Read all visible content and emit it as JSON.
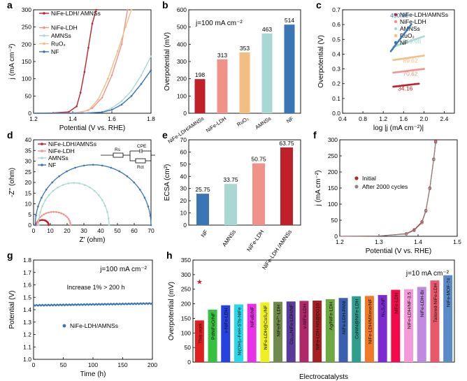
{
  "figure": {
    "panels": [
      "a",
      "b",
      "c",
      "d",
      "e",
      "f",
      "g",
      "h"
    ]
  },
  "chart_data": [
    {
      "panel": "a",
      "type": "line",
      "title": "",
      "xlabel": "Potential (V vs. RHE)",
      "ylabel": "j (mA cm⁻²)",
      "xlim": [
        1.2,
        1.8
      ],
      "ylim": [
        0,
        300
      ],
      "xticks": [
        "1.2",
        "1.4",
        "1.6",
        "1.8"
      ],
      "yticks": [
        "0",
        "50",
        "100",
        "150",
        "200",
        "250",
        "300"
      ],
      "legend_position": "top-left",
      "series": [
        {
          "name": "NiFe-LDH/ AMNSs",
          "color": "#c0202a",
          "x": [
            1.2,
            1.3,
            1.38,
            1.42,
            1.44,
            1.46,
            1.48,
            1.5,
            1.52
          ],
          "y": [
            0,
            1,
            4,
            20,
            60,
            120,
            190,
            260,
            300
          ]
        },
        {
          "name": "NiFe-LDH",
          "color": "#f0928a",
          "x": [
            1.2,
            1.35,
            1.45,
            1.5,
            1.55,
            1.6,
            1.65,
            1.68
          ],
          "y": [
            0,
            0,
            3,
            15,
            45,
            110,
            200,
            300
          ]
        },
        {
          "name": "AMNSs",
          "color": "#a9d8d4",
          "x": [
            1.2,
            1.45,
            1.55,
            1.6,
            1.65,
            1.7,
            1.75,
            1.8
          ],
          "y": [
            0,
            0,
            4,
            15,
            35,
            65,
            110,
            165
          ]
        },
        {
          "name": "RuO₂",
          "color": "#f2be82",
          "x": [
            1.2,
            1.4,
            1.48,
            1.53,
            1.58,
            1.63,
            1.67,
            1.7
          ],
          "y": [
            0,
            0,
            8,
            40,
            100,
            180,
            250,
            300
          ]
        },
        {
          "name": "NF",
          "color": "#3a75b5",
          "x": [
            1.2,
            1.45,
            1.55,
            1.6,
            1.65,
            1.7,
            1.75,
            1.8
          ],
          "y": [
            0,
            0,
            3,
            10,
            25,
            50,
            85,
            125
          ]
        }
      ]
    },
    {
      "panel": "b",
      "type": "bar",
      "title": "j=100 mA cm⁻²",
      "xlabel": "",
      "ylabel": "Overpotential (mV)",
      "ylim": [
        0,
        600
      ],
      "yticks": [
        "0",
        "100",
        "200",
        "300",
        "400",
        "500",
        "600"
      ],
      "categories": [
        "NiFe-LDH/AMNSs",
        "NiFe-LDH",
        "RuO₂",
        "AMNSs",
        "NF"
      ],
      "values": [
        198,
        313,
        353,
        463,
        514
      ],
      "value_labels": [
        "198",
        "313",
        "353",
        "463",
        "514"
      ],
      "colors": [
        "#c0202a",
        "#f0928a",
        "#f2be82",
        "#a9d8d4",
        "#3a75b5"
      ]
    },
    {
      "panel": "c",
      "type": "scatter",
      "title": "",
      "xlabel": "log |j (mA cm⁻²)|",
      "ylabel": "Overpotential (V)",
      "xlim": [
        0.4,
        2.6
      ],
      "ylim": [
        0.0,
        0.7
      ],
      "xticks": [
        "0.4",
        "0.8",
        "1.2",
        "1.6",
        "2.0",
        "2.4"
      ],
      "yticks": [
        "0.0",
        "0.1",
        "0.2",
        "0.3",
        "0.4",
        "0.5",
        "0.6",
        "0.7"
      ],
      "legend_position": "top-right",
      "series": [
        {
          "name": "NiFe-LDH/AMNSs",
          "color": "#c0202a",
          "x_start": 1.4,
          "x_end": 1.9,
          "y_start": 0.18,
          "y_end": 0.2,
          "tafel_label": "34.16"
        },
        {
          "name": "NiFe-LDH",
          "color": "#f0928a",
          "x_start": 1.4,
          "x_end": 2.0,
          "y_start": 0.275,
          "y_end": 0.3,
          "tafel_label": "70.62"
        },
        {
          "name": "AMNSs",
          "color": "#a9d8d4",
          "x_start": 1.4,
          "x_end": 2.0,
          "y_start": 0.45,
          "y_end": 0.52,
          "tafel_label": "259.08"
        },
        {
          "name": "RuO₂",
          "color": "#f2be82",
          "x_start": 1.4,
          "x_end": 2.0,
          "y_start": 0.36,
          "y_end": 0.39,
          "tafel_label": "89.62"
        },
        {
          "name": "NF",
          "color": "#3a75b5",
          "x_start": 1.35,
          "x_end": 1.75,
          "y_start": 0.42,
          "y_end": 0.6,
          "tafel_label": "450.80"
        }
      ]
    },
    {
      "panel": "d",
      "type": "line",
      "title": "",
      "xlabel": "Z' (ohm)",
      "ylabel": "-Z'' (ohm)",
      "xlim": [
        0,
        70
      ],
      "ylim": [
        0,
        40
      ],
      "xticks": [
        "0",
        "10",
        "20",
        "30",
        "40",
        "50",
        "60",
        "70"
      ],
      "yticks": [
        "0",
        "5",
        "10",
        "15",
        "20",
        "25",
        "30",
        "35",
        "40"
      ],
      "legend_position": "top-left",
      "circuit_labels": [
        "Rs",
        "CPE",
        "Rct"
      ],
      "series": [
        {
          "name": "NiFe-LDH/AMNSs",
          "color": "#c0202a",
          "x_start": 1.5,
          "x_end": 9,
          "peak": 2.4
        },
        {
          "name": "NiFe-LDH",
          "color": "#f0928a",
          "x_start": 2,
          "x_end": 22,
          "peak": 6.2
        },
        {
          "name": "AMNSs",
          "color": "#a9d8d4",
          "x_start": 3,
          "x_end": 45,
          "peak": 19.8
        },
        {
          "name": "NF",
          "color": "#3a75b5",
          "x_start": 1,
          "x_end": 70,
          "peak": 28.3
        }
      ]
    },
    {
      "panel": "e",
      "type": "bar",
      "title": "",
      "xlabel": "",
      "ylabel": "ECSA (cm²)",
      "ylim": [
        0,
        70
      ],
      "yticks": [
        "0",
        "10",
        "20",
        "30",
        "40",
        "50",
        "60",
        "70"
      ],
      "categories": [
        "NF",
        "AMNSs",
        "NiFe-LDH",
        "NiFe-LDH /AMNSs"
      ],
      "values": [
        25.75,
        33.75,
        50.75,
        63.75
      ],
      "value_labels": [
        "25.75",
        "33.75",
        "50.75",
        "63.75"
      ],
      "colors": [
        "#3a75b5",
        "#a9d8d4",
        "#f0928a",
        "#c0202a"
      ]
    },
    {
      "panel": "f",
      "type": "line",
      "title": "",
      "xlabel": "Potential (V vs. RHE)",
      "ylabel": "j (mA cm⁻²)",
      "xlim": [
        1.2,
        1.5
      ],
      "ylim": [
        0,
        300
      ],
      "xticks": [
        "1.2",
        "1.3",
        "1.4",
        "1.5"
      ],
      "yticks": [
        "0",
        "50",
        "100",
        "150",
        "200",
        "250",
        "300"
      ],
      "legend_position": "center-left",
      "series": [
        {
          "name": "Initial",
          "color": "#c0202a",
          "x": [
            1.2,
            1.3,
            1.37,
            1.39,
            1.41,
            1.42,
            1.43,
            1.44,
            1.445
          ],
          "y": [
            0,
            1,
            8,
            20,
            45,
            80,
            150,
            240,
            295
          ]
        },
        {
          "name": "After 2000 cycles",
          "color": "#888888",
          "x": [
            1.2,
            1.3,
            1.37,
            1.39,
            1.41,
            1.42,
            1.43,
            1.44,
            1.445
          ],
          "y": [
            0,
            1,
            7,
            18,
            42,
            78,
            148,
            238,
            292
          ]
        }
      ]
    },
    {
      "panel": "g",
      "type": "line",
      "title": "j=100 mA cm⁻²",
      "annotation": "Increase 1% > 200 h",
      "xlabel": "Time (h)",
      "ylabel": "Potential (V)",
      "xlim": [
        0,
        200
      ],
      "ylim": [
        1.0,
        1.8
      ],
      "xticks": [
        "0",
        "50",
        "100",
        "150",
        "200"
      ],
      "yticks": [
        "1.0",
        "1.1",
        "1.2",
        "1.3",
        "1.4",
        "1.5",
        "1.6",
        "1.7",
        "1.8"
      ],
      "legend_position": "bottom-center",
      "series": [
        {
          "name": "NiFe-LDH/AMNSs",
          "color": "#3a75b5",
          "x": [
            0,
            200
          ],
          "y": [
            1.435,
            1.45
          ]
        }
      ]
    },
    {
      "panel": "h",
      "type": "bar",
      "title": "j=10 mA cm⁻²",
      "xlabel": "Electrocatalysts",
      "ylabel": "Overpotential (mV)",
      "ylim": [
        0,
        350
      ],
      "yticks": [
        "0",
        "50",
        "100",
        "150",
        "200",
        "250",
        "300",
        "350"
      ],
      "categories": [
        "This work",
        "PdNiFeO/NF",
        "v-NiFe-LDH",
        "Ni(OH)₂-FeH-STs-NiFe",
        "NiFeB/NF",
        "NiFe-LDH@CoS₂/NF",
        "NiFe/Fe³⁺-LDH",
        "Co₂₀ₓNiFe-LDH/NF",
        "v-NiFe-LDH",
        "NiFe-LDH-NS@DG10",
        "Ag/NiFe-LDH",
        "NiFe-LDH-PANI",
        "CoNiN@NiFe-LDH",
        "NiFe-LDH/MXene/NF",
        "Ni₃S₂/NF",
        "NiFe-LDH",
        "NiFe-LDH/NF-3.5",
        "NiFe-LDH-Br",
        "Tailored-NiFe-LDH",
        "NiFe-MOF-74"
      ],
      "values": [
        143,
        180,
        195,
        198,
        200,
        205,
        207,
        208,
        210,
        211,
        216,
        220,
        226,
        227,
        230,
        248,
        250,
        258,
        280,
        298
      ],
      "colors": [
        "#e02020",
        "#38c040",
        "#2740e0",
        "#2ad8e8",
        "#e832e8",
        "#f0f020",
        "#6f8a4a",
        "#5a3a9a",
        "#b0286a",
        "#a52020",
        "#6da843",
        "#3a5fae",
        "#2f9e8f",
        "#f07a28",
        "#7d2ad0",
        "#f20a4a",
        "#f59ad8",
        "#c08ae0",
        "#e8586a",
        "#5a8ac8"
      ],
      "star_label": "★"
    }
  ]
}
